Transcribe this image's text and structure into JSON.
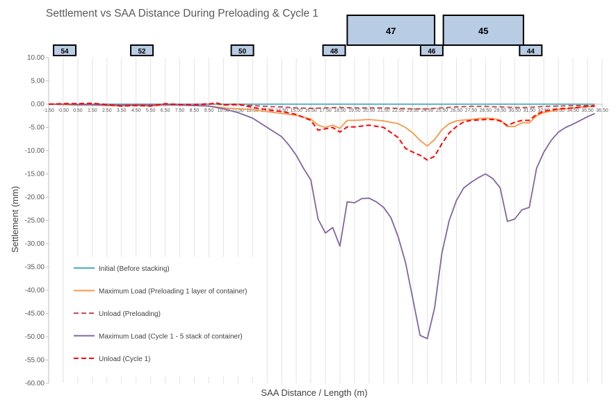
{
  "chart_data": {
    "type": "line",
    "title": "Settlement vs SAA Distance During Preloading & Cycle 1",
    "xlabel": "SAA Distance / Length (m)",
    "ylabel": "Settlement (mm)",
    "xlim": [
      -1.5,
      36.5
    ],
    "ylim": [
      -60,
      10
    ],
    "yticks": [
      "10.00",
      "5.00",
      "0.00",
      "-5.00",
      "-10.00",
      "-15.00",
      "-20.00",
      "-25.00",
      "-30.00",
      "-35.00",
      "-40.00",
      "-45.00",
      "-50.00",
      "-55.00",
      "-60.00"
    ],
    "xticks": [
      "-1.50",
      "-0.50",
      "0.50",
      "1.50",
      "2.50",
      "3.50",
      "4.50",
      "5.50",
      "6.50",
      "7.50",
      "8.50",
      "9.50",
      "10.50",
      "11.50",
      "12.50",
      "13.50",
      "14.50",
      "15.50",
      "16.50",
      "17.50",
      "18.50",
      "19.50",
      "20.50",
      "21.50",
      "22.50",
      "23.50",
      "24.50",
      "25.50",
      "26.50",
      "27.50",
      "28.50",
      "29.50",
      "30.50",
      "31.50",
      "32.50",
      "33.50",
      "34.50",
      "35.50",
      "36.50"
    ],
    "grid": "vertical",
    "legend_position": "bottom-left",
    "series": [
      {
        "name": "Initial (Before stacking)",
        "color": "#4bacc6",
        "dash": "solid",
        "x": [
          -1.5,
          36.0
        ],
        "y": [
          0,
          0
        ]
      },
      {
        "name": "Maximum Load (Preloading 1 layer of container)",
        "color": "#f79646",
        "dash": "solid",
        "x": [
          -1.5,
          -0.5,
          0.5,
          1.5,
          2.5,
          3.5,
          4.5,
          5.5,
          6.5,
          7.5,
          8.5,
          9.5,
          10.5,
          11.5,
          12.5,
          13.5,
          14.5,
          15.5,
          16.5,
          17.0,
          17.5,
          18.0,
          18.5,
          19.0,
          19.5,
          20.5,
          21.5,
          22.5,
          23.0,
          23.5,
          24.0,
          24.5,
          25.0,
          25.5,
          26.0,
          26.5,
          27.0,
          27.5,
          28.0,
          28.5,
          29.0,
          29.5,
          30.0,
          30.5,
          31.0,
          31.5,
          32.0,
          32.5,
          33.5,
          34.5,
          35.5,
          36.0
        ],
        "y": [
          0,
          -0.1,
          -0.2,
          -0.2,
          -0.3,
          -0.4,
          -0.3,
          -0.4,
          -0.2,
          -0.2,
          -0.3,
          -0.4,
          -0.8,
          -1.0,
          -1.2,
          -1.6,
          -2.0,
          -2.4,
          -3.2,
          -4.5,
          -5.0,
          -4.5,
          -5.2,
          -3.5,
          -3.5,
          -3.3,
          -3.6,
          -4.2,
          -5.0,
          -6.2,
          -7.8,
          -9.0,
          -7.6,
          -5.5,
          -4.2,
          -3.6,
          -3.4,
          -3.3,
          -3.1,
          -3.0,
          -3.1,
          -3.4,
          -4.8,
          -4.8,
          -4.0,
          -4.0,
          -2.5,
          -1.8,
          -1.2,
          -0.8,
          -0.5,
          -0.5
        ]
      },
      {
        "name": "Unload (Preloading)",
        "color": "#c0504d",
        "dash": "dashed",
        "x": [
          -1.5,
          -0.5,
          0.5,
          1.5,
          2.5,
          3.5,
          4.5,
          5.5,
          6.5,
          7.5,
          8.5,
          9.5,
          10.5,
          11.5,
          12.5,
          13.5,
          14.5,
          15.5,
          16.5,
          17.5,
          18.5,
          19.5,
          20.5,
          21.5,
          22.5,
          23.5,
          24.5,
          25.5,
          26.5,
          27.5,
          28.5,
          29.5,
          30.5,
          31.5,
          32.5,
          33.5,
          34.5,
          35.5,
          36.0
        ],
        "y": [
          0,
          0,
          0,
          -0.1,
          -0.1,
          -0.2,
          -0.1,
          -0.1,
          -0.1,
          -0.1,
          -0.1,
          0.1,
          -0.1,
          -0.2,
          -0.3,
          -0.5,
          -0.6,
          -0.8,
          -0.9,
          -0.8,
          -0.7,
          -0.8,
          -0.8,
          -0.8,
          -0.9,
          -1.0,
          -1.0,
          -0.8,
          -0.6,
          -0.5,
          -0.5,
          -0.6,
          -0.7,
          -0.7,
          -0.5,
          -0.4,
          -0.3,
          -0.3,
          -0.3
        ]
      },
      {
        "name": "Maximum Load (Cycle 1 - 5 stack of container)",
        "color": "#8064a2",
        "dash": "solid",
        "x": [
          -1.5,
          -0.5,
          0.5,
          1.5,
          2.5,
          3.5,
          4.5,
          5.5,
          6.5,
          7.5,
          8.5,
          9.5,
          10.5,
          11.5,
          12.5,
          13.5,
          14.5,
          15.0,
          15.5,
          16.0,
          16.5,
          17.0,
          17.5,
          18.0,
          18.5,
          19.0,
          19.5,
          20.0,
          20.5,
          21.0,
          21.5,
          22.0,
          22.5,
          23.0,
          23.5,
          24.0,
          24.5,
          25.0,
          25.5,
          26.0,
          26.5,
          27.0,
          27.5,
          28.0,
          28.5,
          29.0,
          29.5,
          30.0,
          30.5,
          31.0,
          31.5,
          32.0,
          32.5,
          33.0,
          33.5,
          34.0,
          34.5,
          35.0,
          35.5,
          36.0
        ],
        "y": [
          0,
          0,
          -0.1,
          -0.1,
          -0.2,
          -0.2,
          -0.2,
          -0.2,
          -0.1,
          -0.2,
          -0.3,
          -0.4,
          -1.0,
          -1.8,
          -3.0,
          -5.0,
          -7.0,
          -8.8,
          -11.0,
          -13.8,
          -16.3,
          -24.7,
          -27.7,
          -26.5,
          -30.5,
          -21.0,
          -21.2,
          -20.3,
          -20.2,
          -21.0,
          -22.2,
          -24.4,
          -28.5,
          -34.0,
          -41.8,
          -49.7,
          -50.4,
          -43.8,
          -32.0,
          -25.0,
          -20.7,
          -18.0,
          -16.8,
          -15.8,
          -15.0,
          -16.0,
          -18.0,
          -25.2,
          -24.7,
          -22.7,
          -22.2,
          -13.8,
          -10.3,
          -7.8,
          -6.0,
          -5.0,
          -4.3,
          -3.5,
          -2.7,
          -2.0
        ]
      },
      {
        "name": "Unload (Cycle 1)",
        "color": "#ff0000",
        "dash": "dashed",
        "x": [
          -1.5,
          -0.5,
          0.5,
          1.5,
          2.5,
          3.5,
          4.5,
          5.5,
          6.5,
          7.5,
          8.5,
          9.5,
          10.0,
          10.5,
          11.5,
          12.5,
          13.5,
          14.5,
          15.5,
          16.5,
          17.0,
          17.5,
          18.0,
          18.5,
          19.0,
          19.5,
          20.5,
          21.5,
          22.5,
          23.0,
          23.5,
          24.0,
          24.5,
          25.0,
          25.5,
          26.0,
          26.5,
          27.0,
          27.5,
          28.0,
          28.5,
          29.0,
          29.5,
          30.0,
          30.5,
          31.0,
          31.5,
          32.0,
          32.5,
          33.5,
          34.5,
          35.5,
          36.0
        ],
        "y": [
          0,
          0.1,
          0.1,
          0.2,
          -0.1,
          -0.4,
          -0.3,
          -0.4,
          0.1,
          -0.1,
          -0.1,
          0,
          0.3,
          -0.2,
          0,
          -0.7,
          -1.2,
          -1.6,
          -2.2,
          -3.5,
          -5.6,
          -5.3,
          -5.0,
          -6.0,
          -4.9,
          -4.9,
          -4.5,
          -5.0,
          -7.2,
          -9.5,
          -10.3,
          -11.0,
          -12.0,
          -11.2,
          -8.5,
          -6.2,
          -4.8,
          -3.8,
          -3.5,
          -3.4,
          -3.3,
          -3.3,
          -3.6,
          -4.6,
          -3.9,
          -3.5,
          -3.5,
          -2.2,
          -1.5,
          -1.0,
          -0.8,
          -0.5,
          -0.4
        ]
      }
    ],
    "annotations": [
      {
        "label": "54",
        "kind": "marker",
        "x_center": -0.4
      },
      {
        "label": "52",
        "kind": "marker",
        "x_center": 4.9
      },
      {
        "label": "50",
        "kind": "marker",
        "x_center": 11.8
      },
      {
        "label": "48",
        "kind": "marker",
        "x_center": 18.1
      },
      {
        "label": "46",
        "kind": "marker",
        "x_center": 24.8
      },
      {
        "label": "44",
        "kind": "marker",
        "x_center": 31.6
      },
      {
        "label": "47",
        "kind": "block",
        "x_from": 19.0,
        "x_to": 25.0
      },
      {
        "label": "45",
        "kind": "block",
        "x_from": 25.6,
        "x_to": 31.1
      }
    ]
  }
}
